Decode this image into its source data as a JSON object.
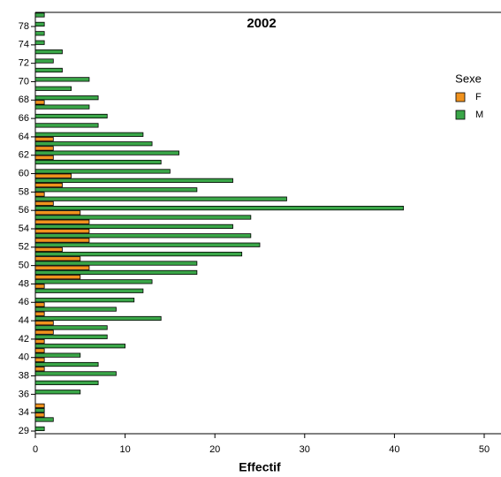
{
  "chart_data": {
    "type": "bar",
    "orientation": "horizontal",
    "title": "2002",
    "x_label": "Effectif",
    "legend_title": "Sexe",
    "legend_position": "right",
    "categories": [
      null,
      "78",
      null,
      "74",
      null,
      "72",
      null,
      "70",
      null,
      "68",
      null,
      "66",
      null,
      "64",
      null,
      "62",
      null,
      "60",
      null,
      "58",
      null,
      "56",
      null,
      "54",
      null,
      "52",
      null,
      "50",
      null,
      "48",
      null,
      "46",
      null,
      "44",
      null,
      "42",
      null,
      "40",
      null,
      "38",
      null,
      "36",
      null,
      "34",
      null,
      "29"
    ],
    "series": [
      {
        "name": "F",
        "color": "#f0921e",
        "values": [
          0,
          0,
          0,
          0,
          0,
          0,
          0,
          0,
          0,
          1,
          0,
          0,
          0,
          2,
          2,
          2,
          0,
          4,
          3,
          1,
          2,
          5,
          6,
          6,
          6,
          3,
          5,
          6,
          5,
          1,
          0,
          1,
          1,
          2,
          2,
          1,
          1,
          1,
          1,
          0,
          0,
          0,
          1,
          1,
          0,
          0
        ]
      },
      {
        "name": "M",
        "color": "#3aa648",
        "values": [
          1,
          1,
          1,
          1,
          3,
          2,
          3,
          6,
          4,
          7,
          6,
          8,
          7,
          12,
          13,
          16,
          14,
          15,
          22,
          18,
          28,
          41,
          24,
          22,
          24,
          25,
          23,
          18,
          18,
          13,
          12,
          11,
          9,
          14,
          8,
          8,
          10,
          5,
          7,
          9,
          7,
          5,
          0,
          1,
          2,
          1
        ]
      }
    ],
    "xlim": [
      0,
      50
    ],
    "xticks": [
      0,
      10,
      20,
      30,
      40,
      50
    ]
  }
}
